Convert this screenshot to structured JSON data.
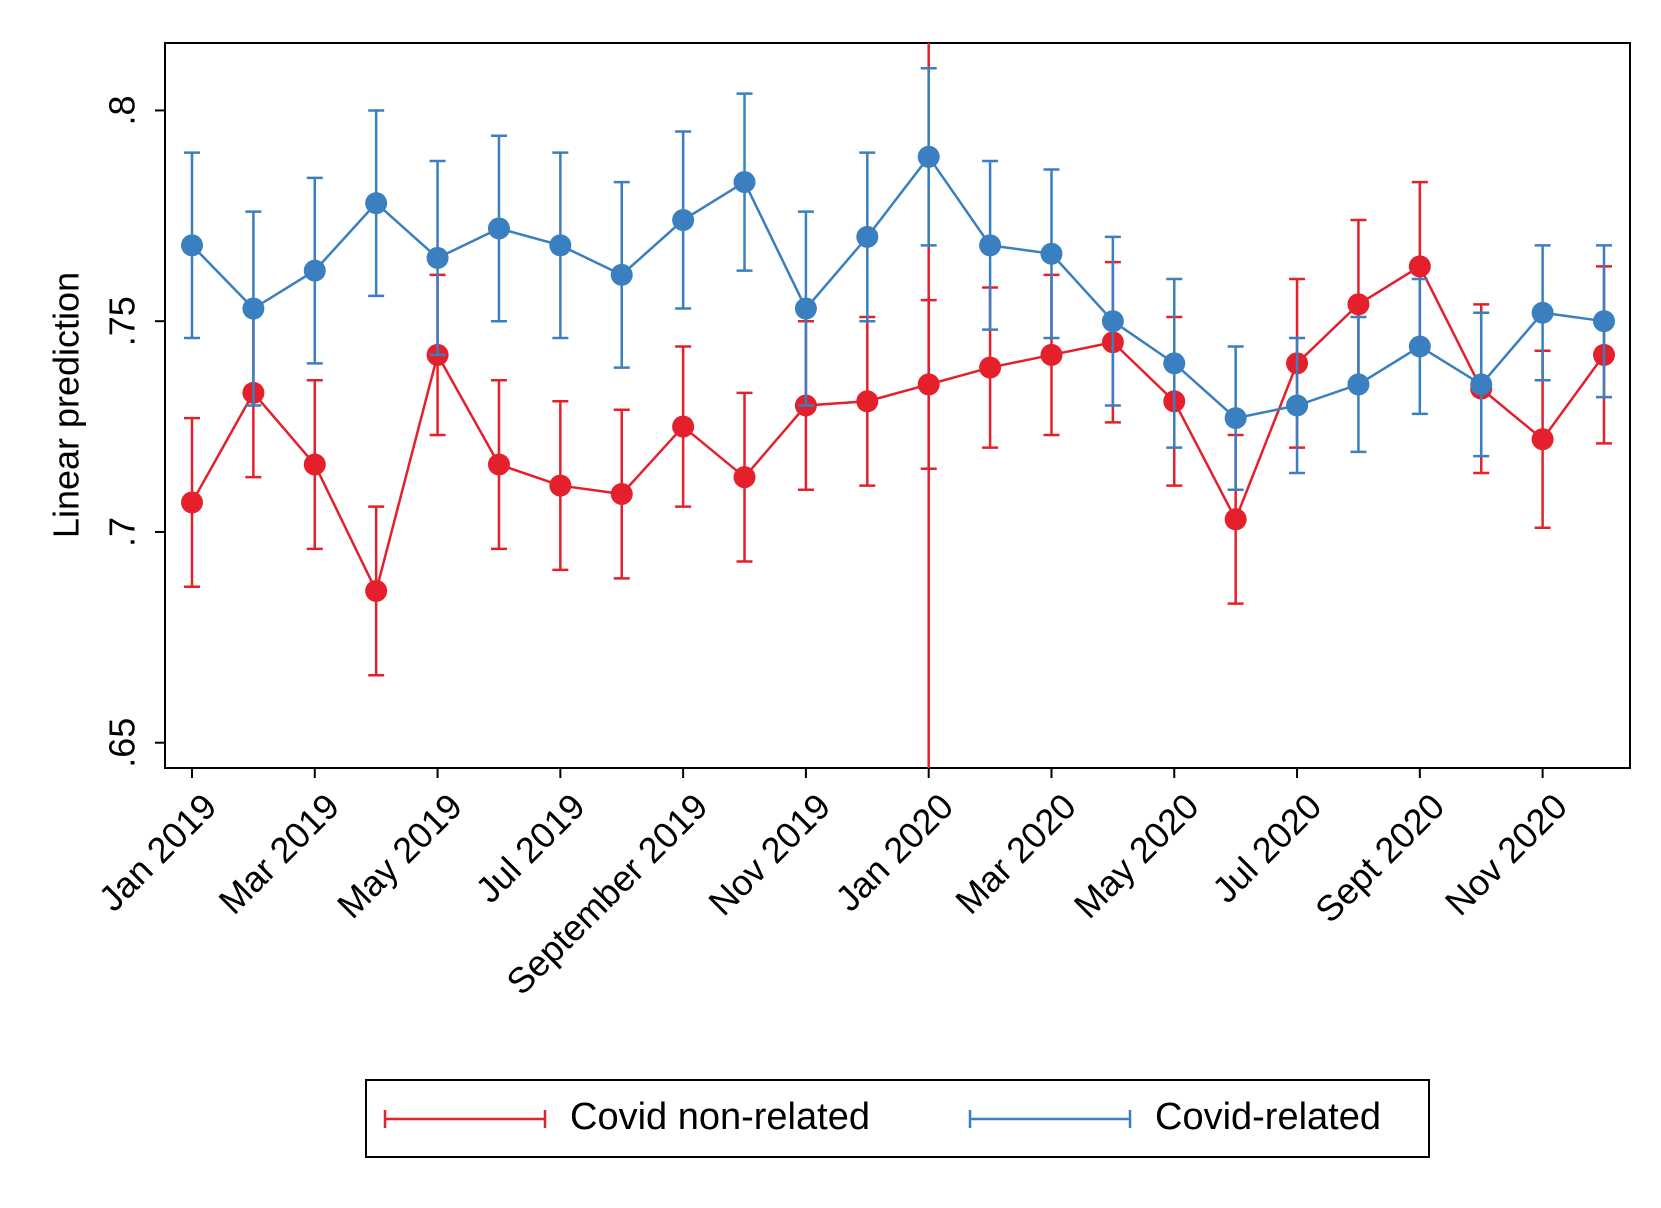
{
  "chart_data": {
    "type": "line",
    "y_label": "Linear prediction",
    "categories": [
      "Jan 2019",
      null,
      "Mar 2019",
      null,
      "May 2019",
      null,
      "Jul 2019",
      null,
      "September 2019",
      null,
      "Nov 2019",
      null,
      "Jan 2020",
      null,
      "Mar 2020",
      null,
      "May 2020",
      null,
      "Jul 2020",
      null,
      "Sept 2020",
      null,
      "Nov 2020",
      null
    ],
    "series": [
      {
        "name": "Covid non-related",
        "color": "#e3202b",
        "values": [
          0.707,
          0.733,
          0.716,
          0.686,
          0.742,
          0.716,
          0.711,
          0.709,
          0.725,
          0.713,
          0.73,
          0.731,
          0.735,
          0.739,
          0.742,
          0.745,
          0.731,
          0.703,
          0.74,
          0.754,
          0.763,
          0.734,
          0.722,
          0.742
        ],
        "errors": [
          0.02,
          0.02,
          0.02,
          0.02,
          0.019,
          0.02,
          0.02,
          0.02,
          0.019,
          0.02,
          0.02,
          0.02,
          0.02,
          0.019,
          0.019,
          0.019,
          0.02,
          0.02,
          0.02,
          0.02,
          0.02,
          0.02,
          0.021,
          0.021
        ]
      },
      {
        "name": "Covid-related",
        "color": "#3a7fbf",
        "values": [
          0.768,
          0.753,
          0.762,
          0.778,
          0.765,
          0.772,
          0.768,
          0.761,
          0.774,
          0.783,
          0.753,
          0.77,
          0.789,
          0.768,
          0.766,
          0.75,
          0.74,
          0.727,
          0.73,
          0.735,
          0.744,
          0.735,
          0.752,
          0.75
        ],
        "errors": [
          0.022,
          0.023,
          0.022,
          0.022,
          0.023,
          0.022,
          0.022,
          0.022,
          0.021,
          0.021,
          0.023,
          0.02,
          0.021,
          0.02,
          0.02,
          0.02,
          0.02,
          0.017,
          0.016,
          0.016,
          0.016,
          0.017,
          0.016,
          0.018
        ]
      }
    ],
    "ylim": [
      0.644,
      0.816
    ],
    "yticks": [
      {
        "value": 0.65,
        "label": ".65"
      },
      {
        "value": 0.7,
        "label": ".7"
      },
      {
        "value": 0.75,
        "label": ".75"
      },
      {
        "value": 0.8,
        "label": ".8"
      }
    ],
    "xline": "Jan 2020",
    "xline_color": "#e3202b",
    "grid": false,
    "legend": "bottom"
  }
}
